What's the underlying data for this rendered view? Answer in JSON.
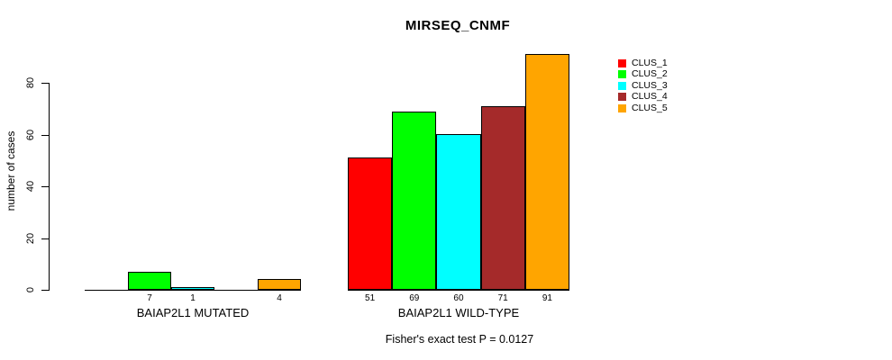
{
  "title": "MIRSEQ_CNMF",
  "caption": "Fisher's exact test P = 0.0127",
  "chart_data": {
    "type": "bar",
    "title": "MIRSEQ_CNMF",
    "xlabel": "",
    "ylabel": "number of cases",
    "ylim": [
      0,
      91
    ],
    "yticks": [
      0,
      20,
      40,
      60,
      80
    ],
    "grid": false,
    "legend_position": "right-top",
    "categories": [
      "BAIAP2L1 MUTATED",
      "BAIAP2L1 WILD-TYPE"
    ],
    "series": [
      {
        "name": "CLUS_1",
        "color": "#FF0000",
        "values": [
          0,
          51
        ]
      },
      {
        "name": "CLUS_2",
        "color": "#00FF00",
        "values": [
          7,
          69
        ]
      },
      {
        "name": "CLUS_3",
        "color": "#00FFFF",
        "values": [
          1,
          60
        ]
      },
      {
        "name": "CLUS_4",
        "color": "#A52A2A",
        "values": [
          0,
          71
        ]
      },
      {
        "name": "CLUS_5",
        "color": "#FFA500",
        "values": [
          4,
          91
        ]
      }
    ],
    "bar_value_labels": {
      "BAIAP2L1 MUTATED": [
        "",
        "7",
        "1",
        "",
        "4"
      ],
      "BAIAP2L1 WILD-TYPE": [
        "51",
        "69",
        "60",
        "71",
        "91"
      ]
    },
    "annotation": "Fisher's exact test P = 0.0127"
  },
  "legend": {
    "items": [
      {
        "label": "CLUS_1",
        "color": "#FF0000"
      },
      {
        "label": "CLUS_2",
        "color": "#00FF00"
      },
      {
        "label": "CLUS_3",
        "color": "#00FFFF"
      },
      {
        "label": "CLUS_4",
        "color": "#A52A2A"
      },
      {
        "label": "CLUS_5",
        "color": "#FFA500"
      }
    ]
  }
}
